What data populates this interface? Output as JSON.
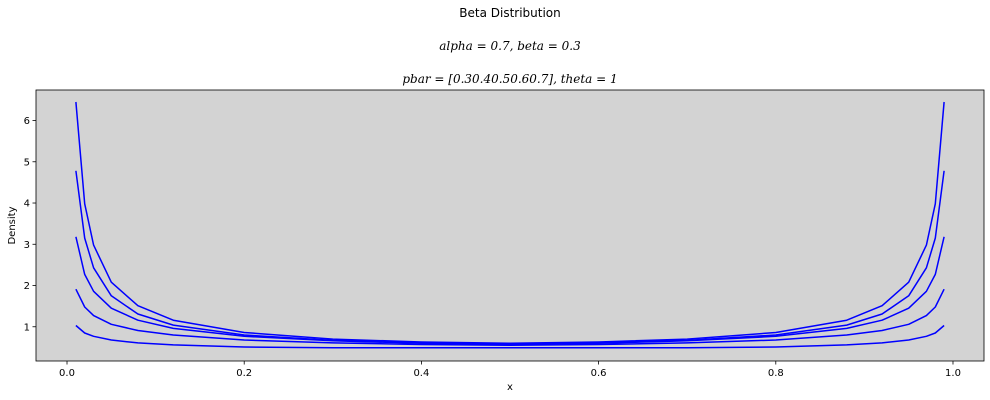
{
  "chart_data": {
    "type": "line",
    "title": "Beta Distribution",
    "subtitle_1": "alpha = 0.7, beta = 0.3",
    "subtitle_2": "pbar = [0.30.40.50.60.7], theta = 1",
    "xlabel": "x",
    "ylabel": "Density",
    "xlim": [
      -0.035,
      1.035
    ],
    "ylim": [
      0.17,
      6.74
    ],
    "xticks": [
      0.0,
      0.2,
      0.4,
      0.6,
      0.8,
      1.0
    ],
    "xtick_labels": [
      "0.0",
      "0.2",
      "0.4",
      "0.6",
      "0.8",
      "1.0"
    ],
    "yticks": [
      1,
      2,
      3,
      4,
      5,
      6
    ],
    "ytick_labels": [
      "1",
      "2",
      "3",
      "4",
      "5",
      "6"
    ],
    "grid": false,
    "background": "#d3d3d3",
    "line_color": "#0000ff",
    "x": [
      0.01,
      0.02,
      0.03,
      0.05,
      0.08,
      0.12,
      0.2,
      0.3,
      0.4,
      0.5,
      0.6,
      0.7,
      0.8,
      0.88,
      0.92,
      0.95,
      0.97,
      0.98,
      0.99
    ],
    "series": [
      {
        "values": [
          1.03,
          0.85,
          0.77,
          0.68,
          0.61,
          0.56,
          0.51,
          0.49,
          0.49,
          0.49,
          0.49,
          0.49,
          0.51,
          0.56,
          0.61,
          0.68,
          0.77,
          0.85,
          1.03
        ]
      },
      {
        "values": [
          1.91,
          1.48,
          1.27,
          1.06,
          0.91,
          0.8,
          0.68,
          0.61,
          0.57,
          0.55,
          0.57,
          0.61,
          0.68,
          0.8,
          0.91,
          1.06,
          1.27,
          1.48,
          1.91
        ]
      },
      {
        "values": [
          3.18,
          2.27,
          1.86,
          1.45,
          1.16,
          0.96,
          0.77,
          0.66,
          0.6,
          0.58,
          0.6,
          0.66,
          0.77,
          0.96,
          1.16,
          1.45,
          1.86,
          2.27,
          3.18
        ]
      },
      {
        "values": [
          4.78,
          3.15,
          2.43,
          1.75,
          1.31,
          1.04,
          0.8,
          0.67,
          0.61,
          0.59,
          0.61,
          0.67,
          0.8,
          1.04,
          1.31,
          1.75,
          2.43,
          3.15,
          4.78
        ]
      },
      {
        "values": [
          6.45,
          3.98,
          2.98,
          2.08,
          1.51,
          1.16,
          0.86,
          0.7,
          0.63,
          0.6,
          0.63,
          0.7,
          0.86,
          1.16,
          1.51,
          2.08,
          2.98,
          3.98,
          6.45
        ]
      }
    ]
  }
}
